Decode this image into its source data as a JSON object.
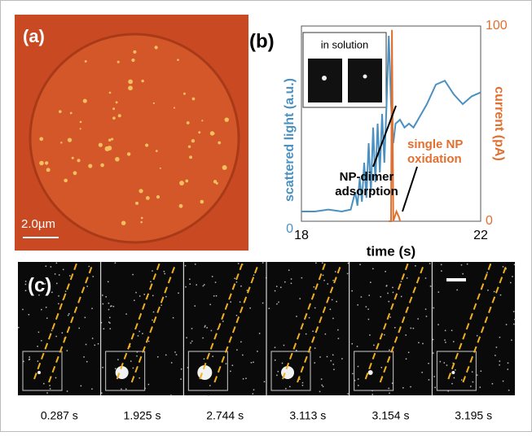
{
  "panels": {
    "a": {
      "label": "(a)",
      "scale_bar": "2.0µm"
    },
    "b": {
      "label": "(b)",
      "inset_text": "in solution"
    },
    "c": {
      "label": "(c)",
      "frames": [
        "0.287 s",
        "1.925 s",
        "2.744 s",
        "3.113 s",
        "3.154 s",
        "3.195 s"
      ]
    }
  },
  "chart_data": {
    "type": "line",
    "x_label": "time (s)",
    "y_label": "scattered light (a.u.)",
    "y2_label": "current (pA)",
    "annotations": [
      [
        "NP-dimer",
        "adsorption"
      ],
      [
        "single NP",
        "oxidation"
      ]
    ],
    "xlim": [
      18,
      22
    ],
    "xticks": [
      18,
      22
    ],
    "ylim": [
      0,
      100
    ],
    "yticks": [
      0
    ],
    "y2lim": [
      0,
      100
    ],
    "y2ticks": [
      0,
      100
    ],
    "series": [
      {
        "color": "#4a90c0",
        "x": [
          18,
          18.3,
          18.6,
          18.9,
          19.1,
          19.2,
          19.25,
          19.3,
          19.35,
          19.4,
          19.45,
          19.5,
          19.55,
          19.6,
          19.65,
          19.7,
          19.75,
          19.8,
          19.85,
          19.9,
          19.95,
          20.0,
          20.05,
          20.1,
          20.2,
          20.3,
          20.4,
          20.5,
          20.6,
          20.8,
          21.0,
          21.2,
          21.4,
          21.6,
          21.8,
          22
        ],
        "values": [
          5,
          5,
          6,
          5,
          6,
          15,
          8,
          22,
          10,
          30,
          12,
          40,
          15,
          48,
          20,
          50,
          25,
          55,
          30,
          60,
          95,
          60,
          40,
          50,
          52,
          48,
          50,
          48,
          52,
          60,
          70,
          72,
          65,
          60,
          64,
          66
        ]
      },
      {
        "color": "#e07030",
        "axis": "y2",
        "x": [
          19.95,
          20.0,
          20.02,
          20.05,
          20.12,
          20.18,
          20.2
        ],
        "values": [
          0,
          0,
          98,
          0,
          5,
          2,
          0
        ]
      }
    ]
  }
}
